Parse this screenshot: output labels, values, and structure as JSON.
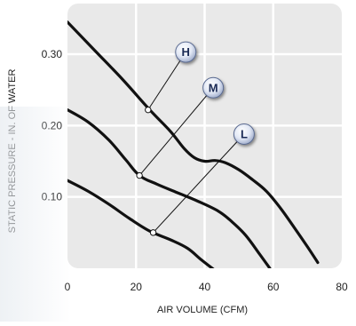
{
  "chart_data": {
    "type": "line",
    "xlabel": "AIR VOLUME (CFM)",
    "ylabel": "STATIC PRESSURE - IN. OF WATER",
    "xlim": [
      0,
      80
    ],
    "ylim": [
      0,
      0.35
    ],
    "x_ticks": [
      "0",
      "20",
      "40",
      "60",
      "80"
    ],
    "y_ticks": [
      "0.10",
      "0.20",
      "0.30"
    ],
    "grid": true,
    "series": [
      {
        "name": "H",
        "points": [
          [
            0,
            0.345
          ],
          [
            8,
            0.305
          ],
          [
            16,
            0.265
          ],
          [
            24,
            0.222
          ],
          [
            30,
            0.192
          ],
          [
            34,
            0.168
          ],
          [
            37,
            0.155
          ],
          [
            40,
            0.15
          ],
          [
            43,
            0.151
          ],
          [
            46,
            0.148
          ],
          [
            50,
            0.138
          ],
          [
            54,
            0.124
          ],
          [
            58,
            0.108
          ],
          [
            62,
            0.085
          ],
          [
            66,
            0.058
          ],
          [
            70,
            0.03
          ],
          [
            73,
            0.008
          ]
        ]
      },
      {
        "name": "M",
        "points": [
          [
            0,
            0.222
          ],
          [
            6,
            0.205
          ],
          [
            12,
            0.18
          ],
          [
            17,
            0.152
          ],
          [
            21,
            0.13
          ],
          [
            26,
            0.118
          ],
          [
            32,
            0.106
          ],
          [
            38,
            0.094
          ],
          [
            44,
            0.08
          ],
          [
            48,
            0.065
          ],
          [
            52,
            0.046
          ],
          [
            56,
            0.02
          ],
          [
            59,
            0.0
          ]
        ]
      },
      {
        "name": "L",
        "points": [
          [
            0,
            0.123
          ],
          [
            6,
            0.108
          ],
          [
            12,
            0.09
          ],
          [
            18,
            0.07
          ],
          [
            24,
            0.052
          ],
          [
            30,
            0.04
          ],
          [
            35,
            0.028
          ],
          [
            39,
            0.012
          ],
          [
            43,
            -0.003
          ]
        ]
      }
    ],
    "annotations": [
      {
        "label": "H",
        "anchor": [
          23.5,
          0.222
        ],
        "badge": [
          34.5,
          0.303
        ]
      },
      {
        "label": "M",
        "anchor": [
          21.0,
          0.13
        ],
        "badge": [
          42.5,
          0.253
        ]
      },
      {
        "label": "L",
        "anchor": [
          25.0,
          0.05
        ],
        "badge": [
          51.5,
          0.188
        ]
      }
    ],
    "colors": {
      "plot_bg": "#e9e9e9",
      "grid": "#ffffff",
      "curve": "#111111",
      "leader": "#111111",
      "badge_fill": "#dfe6f5",
      "badge_text": "#1a2a55"
    }
  }
}
